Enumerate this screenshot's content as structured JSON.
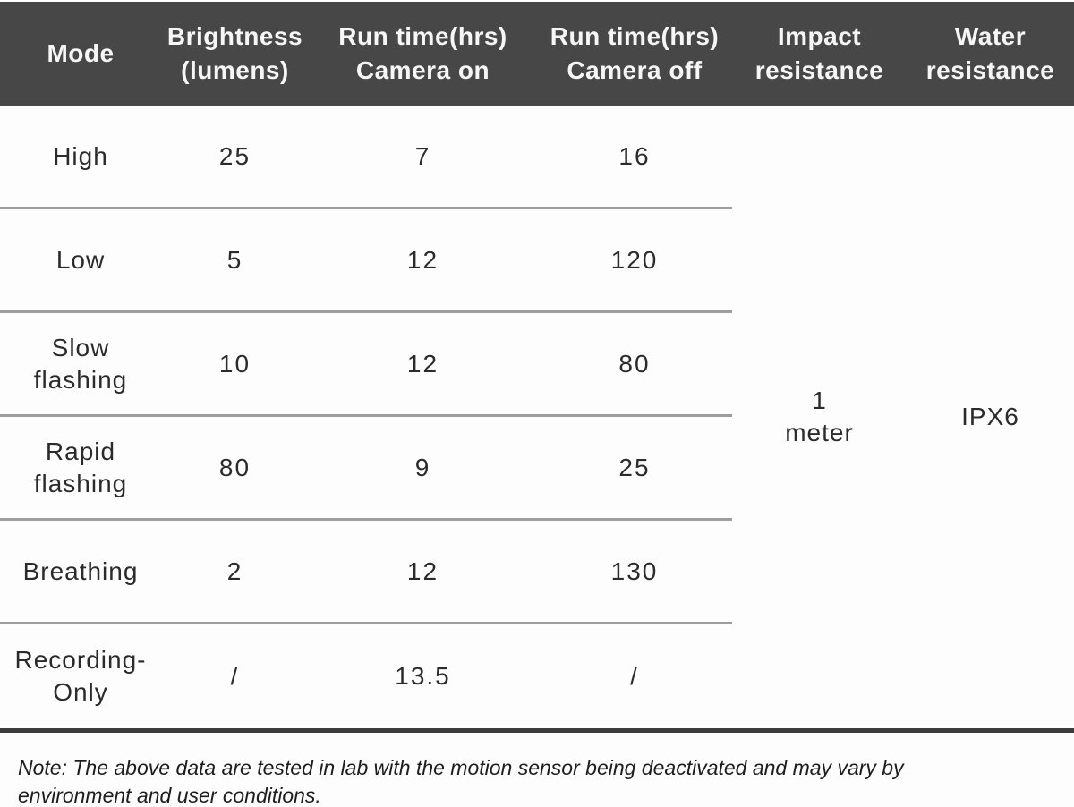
{
  "chart_data": {
    "type": "table",
    "title": "",
    "columns": [
      "Mode",
      "Brightness (lumens)",
      "Run time(hrs) Camera on",
      "Run time(hrs) Camera off",
      "Impact resistance",
      "Water resistance"
    ],
    "rows": [
      [
        "High",
        "25",
        "7",
        "16"
      ],
      [
        "Low",
        "5",
        "12",
        "120"
      ],
      [
        "Slow flashing",
        "10",
        "12",
        "80"
      ],
      [
        "Rapid flashing",
        "80",
        "9",
        "25"
      ],
      [
        "Breathing",
        "2",
        "12",
        "130"
      ],
      [
        "Recording-Only",
        "/",
        "13.5",
        "/"
      ]
    ],
    "merged_cells": {
      "Impact resistance": "1 meter",
      "Water resistance": "IPX6"
    },
    "note": "Note: The above data are tested in lab with the motion sensor being deactivated and may vary by environment and user conditions.",
    "layout": {
      "header_bg": "#474747",
      "header_text_color": "#f6f6f6",
      "body_text_color": "#2b2b2b",
      "row_divider_color": "#9e9e9e",
      "bottom_border_color": "#3c3c3c",
      "grid": "horizontal dividers only on first four columns; impact and water resistance cells span all rows"
    }
  },
  "table": {
    "headers": [
      {
        "lines": [
          "Mode"
        ]
      },
      {
        "lines": [
          "Brightness",
          "(lumens)"
        ]
      },
      {
        "lines": [
          "Run time(hrs)",
          "Camera on"
        ]
      },
      {
        "lines": [
          "Run time(hrs)",
          "Camera off"
        ]
      },
      {
        "lines": [
          "Impact",
          "resistance"
        ]
      },
      {
        "lines": [
          "Water",
          "resistance"
        ]
      }
    ],
    "rows": [
      {
        "mode": "High",
        "brightness": "25",
        "camera_on": "7",
        "camera_off": "16"
      },
      {
        "mode": "Low",
        "brightness": "5",
        "camera_on": "12",
        "camera_off": "120"
      },
      {
        "mode": "Slow flashing",
        "brightness": "10",
        "camera_on": "12",
        "camera_off": "80"
      },
      {
        "mode": "Rapid flashing",
        "brightness": "80",
        "camera_on": "9",
        "camera_off": "25"
      },
      {
        "mode": "Breathing",
        "brightness": "2",
        "camera_on": "12",
        "camera_off": "130"
      },
      {
        "mode": "Recording-Only",
        "brightness": "/",
        "camera_on": "13.5",
        "camera_off": "/"
      }
    ],
    "impact_resistance": {
      "lines": [
        "1",
        "meter"
      ]
    },
    "water_resistance": "IPX6"
  },
  "note": "Note: The above data are tested in lab with the motion sensor being deactivated and may vary by environment and user conditions."
}
